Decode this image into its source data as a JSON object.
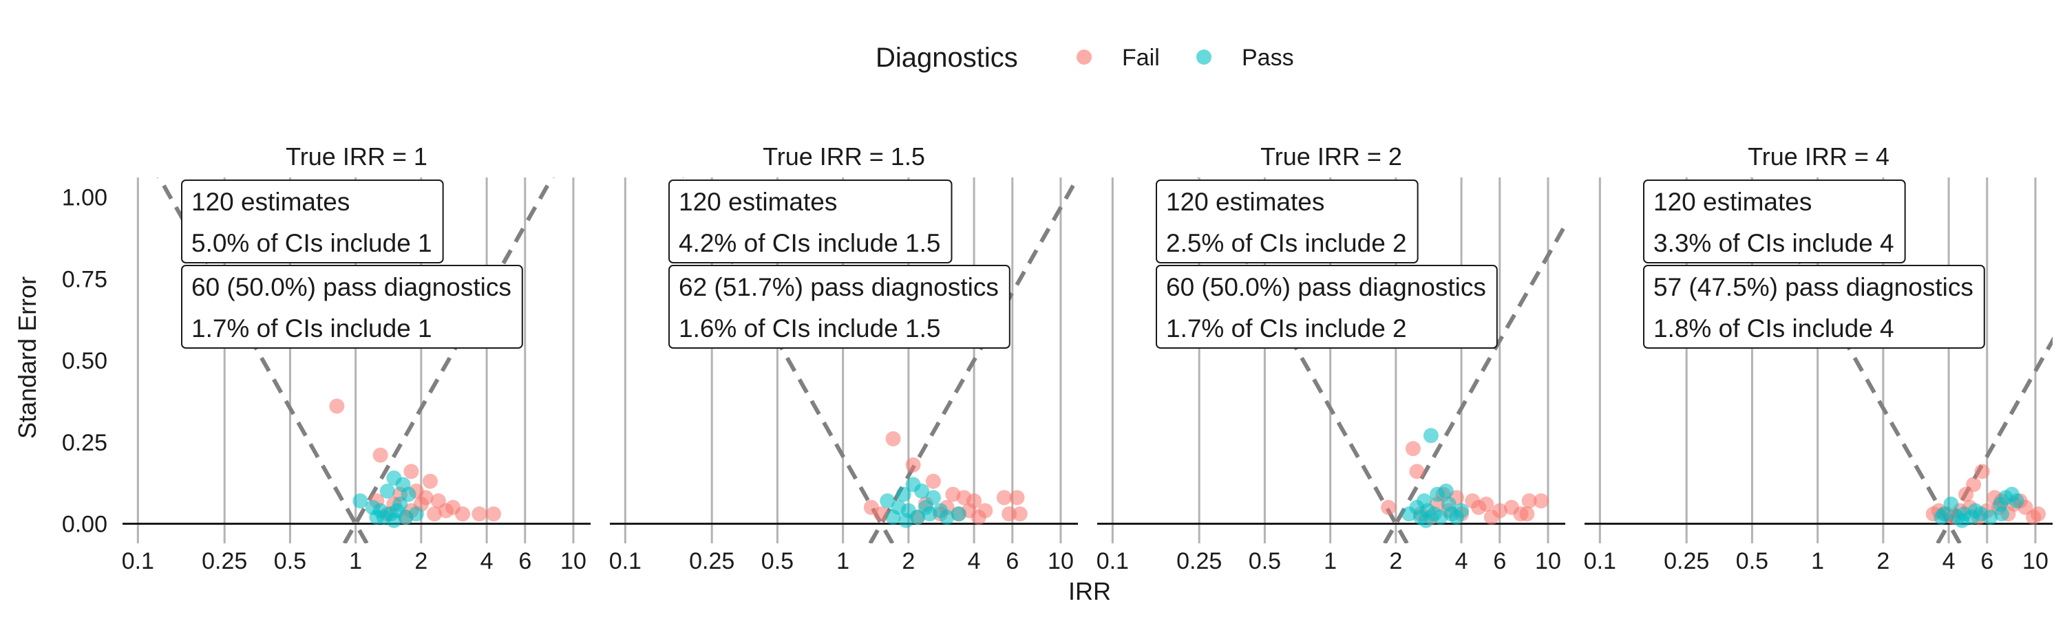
{
  "legend": {
    "title": "Diagnostics",
    "entries": [
      {
        "label": "Fail",
        "color": "#f8766d"
      },
      {
        "label": "Pass",
        "color": "#00bfc4"
      }
    ]
  },
  "chart_data": {
    "type": "scatter",
    "xlabel": "IRR",
    "ylabel": "Standard Error",
    "x_scale": "log",
    "x_ticks": [
      0.1,
      0.25,
      0.5,
      1,
      2,
      4,
      6,
      10
    ],
    "x_tick_labels": [
      "0.1",
      "0.25",
      "0.5",
      "1",
      "2",
      "4",
      "6",
      "10"
    ],
    "y_ticks": [
      0,
      0.25,
      0.5,
      0.75,
      1
    ],
    "y_tick_labels": [
      "0.00",
      "0.25",
      "0.50",
      "0.75",
      "1.00"
    ],
    "xlim": [
      0.085,
      12
    ],
    "ylim": [
      -0.06,
      1.06
    ],
    "grid": "vertical",
    "legend_position": "top",
    "panels": [
      {
        "title": "True IRR = 1",
        "true_value": 1,
        "box1": [
          "120 estimates",
          "5.0% of CIs include 1"
        ],
        "box2": [
          "60 (50.0%) pass diagnostics",
          "1.7% of CIs include 1"
        ],
        "fail_points": [
          [
            0.82,
            0.36
          ],
          [
            1.3,
            0.21
          ],
          [
            1.8,
            0.16
          ],
          [
            2.2,
            0.13
          ],
          [
            1.6,
            0.09
          ],
          [
            1.25,
            0.07
          ],
          [
            1.9,
            0.1
          ],
          [
            2.1,
            0.08
          ],
          [
            2.4,
            0.07
          ],
          [
            2.8,
            0.05
          ],
          [
            2.6,
            0.04
          ],
          [
            3.1,
            0.03
          ],
          [
            3.7,
            0.03
          ],
          [
            4.3,
            0.03
          ],
          [
            1.4,
            0.03
          ],
          [
            1.7,
            0.02
          ],
          [
            2.0,
            0.06
          ],
          [
            2.3,
            0.03
          ],
          [
            1.5,
            0.06
          ],
          [
            1.8,
            0.04
          ]
        ],
        "pass_points": [
          [
            1.5,
            0.14
          ],
          [
            1.65,
            0.12
          ],
          [
            1.4,
            0.1
          ],
          [
            1.75,
            0.09
          ],
          [
            1.05,
            0.07
          ],
          [
            1.2,
            0.05
          ],
          [
            1.3,
            0.04
          ],
          [
            1.55,
            0.04
          ],
          [
            1.6,
            0.06
          ],
          [
            1.45,
            0.03
          ],
          [
            1.35,
            0.02
          ],
          [
            1.7,
            0.02
          ],
          [
            1.25,
            0.02
          ],
          [
            1.5,
            0.01
          ],
          [
            1.9,
            0.03
          ]
        ]
      },
      {
        "title": "True IRR = 1.5",
        "true_value": 1.5,
        "box1": [
          "120 estimates",
          "4.2% of CIs include 1.5"
        ],
        "box2": [
          "62 (51.7%) pass diagnostics",
          "1.6% of CIs include 1.5"
        ],
        "fail_points": [
          [
            1.7,
            0.26
          ],
          [
            2.1,
            0.18
          ],
          [
            2.6,
            0.13
          ],
          [
            3.2,
            0.09
          ],
          [
            3.6,
            0.08
          ],
          [
            4.0,
            0.07
          ],
          [
            5.5,
            0.08
          ],
          [
            6.3,
            0.08
          ],
          [
            5.8,
            0.03
          ],
          [
            6.5,
            0.03
          ],
          [
            4.5,
            0.04
          ],
          [
            3.0,
            0.05
          ],
          [
            2.8,
            0.03
          ],
          [
            1.35,
            0.05
          ],
          [
            2.4,
            0.06
          ],
          [
            3.8,
            0.04
          ],
          [
            4.2,
            0.02
          ],
          [
            2.2,
            0.02
          ],
          [
            1.5,
            0.03
          ],
          [
            3.4,
            0.03
          ]
        ],
        "pass_points": [
          [
            2.1,
            0.12
          ],
          [
            2.3,
            0.1
          ],
          [
            1.9,
            0.09
          ],
          [
            2.6,
            0.08
          ],
          [
            1.6,
            0.07
          ],
          [
            1.8,
            0.05
          ],
          [
            2.0,
            0.04
          ],
          [
            2.5,
            0.03
          ],
          [
            2.2,
            0.02
          ],
          [
            1.7,
            0.02
          ],
          [
            2.8,
            0.04
          ],
          [
            3.0,
            0.02
          ],
          [
            2.4,
            0.05
          ],
          [
            1.95,
            0.01
          ],
          [
            3.4,
            0.03
          ]
        ]
      },
      {
        "title": "True IRR = 2",
        "true_value": 2,
        "box1": [
          "120 estimates",
          "2.5% of CIs include 2"
        ],
        "box2": [
          "60 (50.0%) pass diagnostics",
          "1.7% of CIs include 2"
        ],
        "fail_points": [
          [
            2.4,
            0.23
          ],
          [
            2.5,
            0.16
          ],
          [
            3.3,
            0.09
          ],
          [
            3.8,
            0.08
          ],
          [
            4.5,
            0.07
          ],
          [
            5.2,
            0.06
          ],
          [
            8.2,
            0.07
          ],
          [
            9.3,
            0.07
          ],
          [
            8.0,
            0.03
          ],
          [
            7.5,
            0.03
          ],
          [
            6.0,
            0.04
          ],
          [
            4.8,
            0.05
          ],
          [
            3.5,
            0.04
          ],
          [
            1.85,
            0.05
          ],
          [
            2.6,
            0.03
          ],
          [
            4.0,
            0.03
          ],
          [
            5.5,
            0.02
          ],
          [
            2.9,
            0.02
          ],
          [
            3.1,
            0.06
          ],
          [
            6.8,
            0.05
          ]
        ],
        "pass_points": [
          [
            2.9,
            0.27
          ],
          [
            3.4,
            0.1
          ],
          [
            3.1,
            0.09
          ],
          [
            2.7,
            0.07
          ],
          [
            2.5,
            0.05
          ],
          [
            2.8,
            0.04
          ],
          [
            3.0,
            0.03
          ],
          [
            3.6,
            0.03
          ],
          [
            2.6,
            0.02
          ],
          [
            3.2,
            0.02
          ],
          [
            4.0,
            0.04
          ],
          [
            2.3,
            0.03
          ],
          [
            3.5,
            0.06
          ],
          [
            2.75,
            0.01
          ],
          [
            3.8,
            0.02
          ]
        ]
      },
      {
        "title": "True IRR = 4",
        "true_value": 4,
        "box1": [
          "120 estimates",
          "3.3% of CIs include 4"
        ],
        "box2": [
          "57 (47.5%) pass diagnostics",
          "1.8% of CIs include 4"
        ],
        "fail_points": [
          [
            5.7,
            0.16
          ],
          [
            5.2,
            0.12
          ],
          [
            4.8,
            0.09
          ],
          [
            6.5,
            0.08
          ],
          [
            7.0,
            0.07
          ],
          [
            8.0,
            0.06
          ],
          [
            8.5,
            0.07
          ],
          [
            9.0,
            0.05
          ],
          [
            3.4,
            0.03
          ],
          [
            3.9,
            0.03
          ],
          [
            4.5,
            0.04
          ],
          [
            5.0,
            0.05
          ],
          [
            6.0,
            0.04
          ],
          [
            7.5,
            0.03
          ],
          [
            9.8,
            0.02
          ],
          [
            10.3,
            0.03
          ],
          [
            4.2,
            0.02
          ],
          [
            5.5,
            0.02
          ],
          [
            6.8,
            0.05
          ],
          [
            3.6,
            0.04
          ]
        ],
        "pass_points": [
          [
            7.8,
            0.09
          ],
          [
            7.3,
            0.08
          ],
          [
            8.2,
            0.07
          ],
          [
            6.9,
            0.06
          ],
          [
            4.1,
            0.06
          ],
          [
            3.8,
            0.03
          ],
          [
            4.4,
            0.02
          ],
          [
            4.7,
            0.03
          ],
          [
            5.1,
            0.02
          ],
          [
            5.6,
            0.03
          ],
          [
            6.2,
            0.02
          ],
          [
            7.0,
            0.03
          ],
          [
            4.6,
            0.01
          ],
          [
            5.3,
            0.04
          ],
          [
            3.7,
            0.02
          ]
        ]
      }
    ]
  }
}
